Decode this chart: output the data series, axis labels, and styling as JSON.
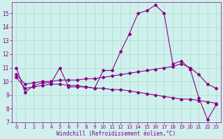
{
  "xlabel": "Windchill (Refroidissement éolien,°C)",
  "bg_color": "#cff0ec",
  "grid_color": "#aaddcc",
  "line_color": "#880088",
  "xlim": [
    -0.5,
    23.5
  ],
  "ylim": [
    7,
    15.8
  ],
  "xticks": [
    0,
    1,
    2,
    3,
    4,
    5,
    6,
    7,
    8,
    9,
    10,
    11,
    12,
    13,
    14,
    15,
    16,
    17,
    18,
    19,
    20,
    21,
    22,
    23
  ],
  "yticks": [
    7,
    8,
    9,
    10,
    11,
    12,
    13,
    14,
    15
  ],
  "series1_y": [
    11.0,
    9.2,
    9.7,
    9.9,
    9.9,
    11.0,
    9.6,
    9.6,
    9.6,
    9.5,
    10.8,
    10.8,
    12.2,
    13.5,
    15.0,
    15.2,
    15.6,
    15.0,
    11.3,
    11.5,
    10.9,
    8.8,
    7.2,
    8.3
  ],
  "series2_y": [
    10.5,
    9.8,
    9.9,
    10.0,
    10.0,
    10.1,
    10.1,
    10.1,
    10.2,
    10.2,
    10.3,
    10.4,
    10.5,
    10.6,
    10.7,
    10.8,
    10.9,
    11.0,
    11.1,
    11.3,
    11.0,
    10.5,
    9.8,
    9.5
  ],
  "series3_y": [
    10.3,
    9.5,
    9.6,
    9.7,
    9.8,
    9.8,
    9.7,
    9.7,
    9.6,
    9.5,
    9.5,
    9.4,
    9.4,
    9.3,
    9.2,
    9.1,
    9.0,
    8.9,
    8.8,
    8.7,
    8.7,
    8.6,
    8.5,
    8.4
  ]
}
